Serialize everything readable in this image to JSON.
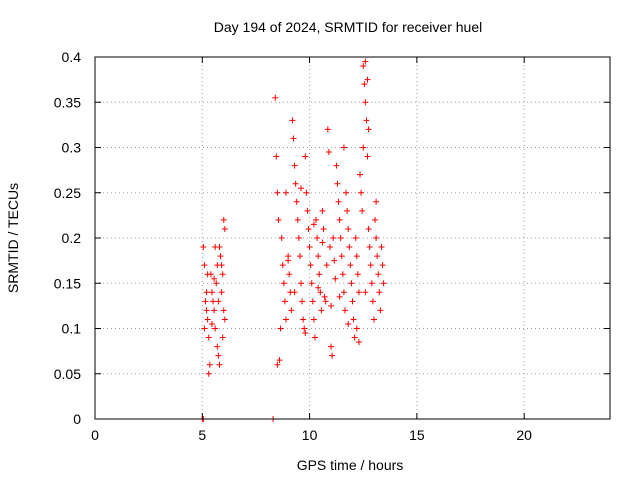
{
  "chart_data": {
    "type": "scatter",
    "title": "Day 194 of 2024, SRMTID for receiver huel",
    "xlabel": "GPS time / hours",
    "ylabel": "SRMTID / TECUs",
    "xlim": [
      0,
      24
    ],
    "ylim": [
      0,
      0.4
    ],
    "grid": true,
    "marker": "+",
    "color": "#ff0000",
    "x_ticks": [
      {
        "value": 0,
        "label": "0"
      },
      {
        "value": 5,
        "label": "5"
      },
      {
        "value": 10,
        "label": "10"
      },
      {
        "value": 15,
        "label": "15"
      },
      {
        "value": 20,
        "label": "20"
      }
    ],
    "y_ticks": [
      {
        "value": 0,
        "label": "0"
      },
      {
        "value": 0.05,
        "label": "0.05"
      },
      {
        "value": 0.1,
        "label": "0.1"
      },
      {
        "value": 0.15,
        "label": "0.15"
      },
      {
        "value": 0.2,
        "label": "0.2"
      },
      {
        "value": 0.25,
        "label": "0.25"
      },
      {
        "value": 0.3,
        "label": "0.3"
      },
      {
        "value": 0.35,
        "label": "0.35"
      },
      {
        "value": 0.4,
        "label": "0.4"
      }
    ],
    "series": [
      {
        "name": "SRMTID",
        "points": [
          [
            5.0,
            0.0
          ],
          [
            5.05,
            0.0
          ],
          [
            8.3,
            0.0
          ],
          [
            5.05,
            0.19
          ],
          [
            5.1,
            0.17
          ],
          [
            5.15,
            0.13
          ],
          [
            5.2,
            0.12
          ],
          [
            5.25,
            0.11
          ],
          [
            5.3,
            0.09
          ],
          [
            5.35,
            0.06
          ],
          [
            5.3,
            0.05
          ],
          [
            5.4,
            0.16
          ],
          [
            5.45,
            0.14
          ],
          [
            5.5,
            0.13
          ],
          [
            5.55,
            0.12
          ],
          [
            5.6,
            0.19
          ],
          [
            5.65,
            0.15
          ],
          [
            5.7,
            0.08
          ],
          [
            5.75,
            0.07
          ],
          [
            5.8,
            0.06
          ],
          [
            5.85,
            0.18
          ],
          [
            5.9,
            0.17
          ],
          [
            5.95,
            0.16
          ],
          [
            6.0,
            0.22
          ],
          [
            6.05,
            0.21
          ],
          [
            5.9,
            0.14
          ],
          [
            6.0,
            0.12
          ],
          [
            6.05,
            0.11
          ],
          [
            5.95,
            0.09
          ],
          [
            5.6,
            0.1
          ],
          [
            5.2,
            0.14
          ],
          [
            5.25,
            0.16
          ],
          [
            5.1,
            0.1
          ],
          [
            5.7,
            0.17
          ],
          [
            5.75,
            0.13
          ],
          [
            5.8,
            0.19
          ],
          [
            5.55,
            0.155
          ],
          [
            5.45,
            0.105
          ],
          [
            8.4,
            0.355
          ],
          [
            8.45,
            0.29
          ],
          [
            8.5,
            0.25
          ],
          [
            8.55,
            0.22
          ],
          [
            8.6,
            0.065
          ],
          [
            8.5,
            0.06
          ],
          [
            8.7,
            0.2
          ],
          [
            8.75,
            0.17
          ],
          [
            8.8,
            0.15
          ],
          [
            8.85,
            0.13
          ],
          [
            8.9,
            0.11
          ],
          [
            8.65,
            0.1
          ],
          [
            9.0,
            0.18
          ],
          [
            9.05,
            0.16
          ],
          [
            9.1,
            0.14
          ],
          [
            9.15,
            0.12
          ],
          [
            9.2,
            0.33
          ],
          [
            9.25,
            0.31
          ],
          [
            9.3,
            0.28
          ],
          [
            9.35,
            0.26
          ],
          [
            9.4,
            0.24
          ],
          [
            9.45,
            0.22
          ],
          [
            9.5,
            0.2
          ],
          [
            9.55,
            0.18
          ],
          [
            9.6,
            0.15
          ],
          [
            9.65,
            0.13
          ],
          [
            9.7,
            0.11
          ],
          [
            9.75,
            0.1
          ],
          [
            9.8,
            0.29
          ],
          [
            9.85,
            0.25
          ],
          [
            9.9,
            0.23
          ],
          [
            9.95,
            0.21
          ],
          [
            10.0,
            0.19
          ],
          [
            10.05,
            0.17
          ],
          [
            10.1,
            0.15
          ],
          [
            10.15,
            0.13
          ],
          [
            10.2,
            0.11
          ],
          [
            10.25,
            0.09
          ],
          [
            10.3,
            0.22
          ],
          [
            10.35,
            0.2
          ],
          [
            10.4,
            0.18
          ],
          [
            10.45,
            0.16
          ],
          [
            10.5,
            0.14
          ],
          [
            10.55,
            0.12
          ],
          [
            10.6,
            0.23
          ],
          [
            10.65,
            0.21
          ],
          [
            10.7,
            0.135
          ],
          [
            10.75,
            0.13
          ],
          [
            10.8,
            0.17
          ],
          [
            10.85,
            0.32
          ],
          [
            10.9,
            0.295
          ],
          [
            10.95,
            0.19
          ],
          [
            11.0,
            0.08
          ],
          [
            11.05,
            0.07
          ],
          [
            11.1,
            0.2
          ],
          [
            11.15,
            0.175
          ],
          [
            11.2,
            0.155
          ],
          [
            11.25,
            0.28
          ],
          [
            11.3,
            0.26
          ],
          [
            11.35,
            0.24
          ],
          [
            11.4,
            0.22
          ],
          [
            11.45,
            0.2
          ],
          [
            11.5,
            0.18
          ],
          [
            11.55,
            0.16
          ],
          [
            11.6,
            0.14
          ],
          [
            11.65,
            0.12
          ],
          [
            11.7,
            0.25
          ],
          [
            11.75,
            0.23
          ],
          [
            11.8,
            0.21
          ],
          [
            11.85,
            0.19
          ],
          [
            11.9,
            0.17
          ],
          [
            11.95,
            0.15
          ],
          [
            12.0,
            0.13
          ],
          [
            12.05,
            0.11
          ],
          [
            12.1,
            0.09
          ],
          [
            12.15,
            0.2
          ],
          [
            12.2,
            0.18
          ],
          [
            12.25,
            0.16
          ],
          [
            12.3,
            0.14
          ],
          [
            12.35,
            0.27
          ],
          [
            12.4,
            0.25
          ],
          [
            12.45,
            0.23
          ],
          [
            12.5,
            0.39
          ],
          [
            12.55,
            0.37
          ],
          [
            12.6,
            0.35
          ],
          [
            12.65,
            0.33
          ],
          [
            12.7,
            0.29
          ],
          [
            12.75,
            0.21
          ],
          [
            12.8,
            0.19
          ],
          [
            12.85,
            0.17
          ],
          [
            12.9,
            0.15
          ],
          [
            12.95,
            0.13
          ],
          [
            13.0,
            0.11
          ],
          [
            13.05,
            0.22
          ],
          [
            13.1,
            0.2
          ],
          [
            13.15,
            0.18
          ],
          [
            13.2,
            0.16
          ],
          [
            13.25,
            0.14
          ],
          [
            13.3,
            0.12
          ],
          [
            13.35,
            0.19
          ],
          [
            13.4,
            0.17
          ],
          [
            13.45,
            0.15
          ],
          [
            12.6,
            0.395
          ],
          [
            12.7,
            0.375
          ],
          [
            12.75,
            0.32
          ],
          [
            12.5,
            0.3
          ],
          [
            12.3,
            0.085
          ],
          [
            12.2,
            0.1
          ],
          [
            11.4,
            0.135
          ],
          [
            11.6,
            0.3
          ],
          [
            10.4,
            0.145
          ],
          [
            9.6,
            0.255
          ],
          [
            9.0,
            0.175
          ],
          [
            8.9,
            0.25
          ],
          [
            9.3,
            0.14
          ],
          [
            9.8,
            0.095
          ],
          [
            10.2,
            0.215
          ],
          [
            10.6,
            0.195
          ],
          [
            11.0,
            0.125
          ],
          [
            11.8,
            0.105
          ],
          [
            12.6,
            0.14
          ],
          [
            13.1,
            0.24
          ]
        ]
      }
    ]
  }
}
